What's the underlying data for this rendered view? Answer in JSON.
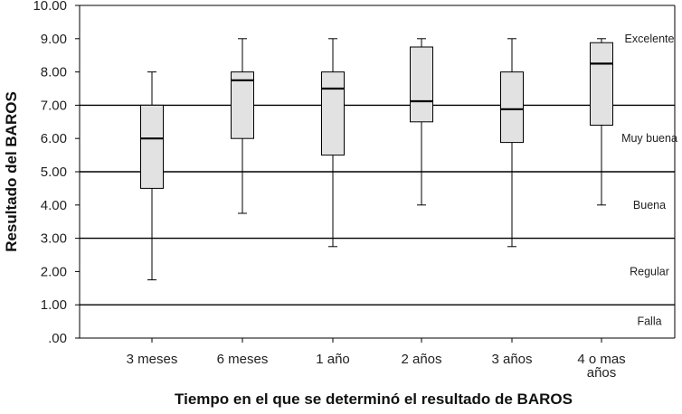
{
  "chart_data": {
    "type": "box",
    "xlabel": "Tiempo en el que se determinó  el resultado de BAROS",
    "ylabel": "Resultado del BAROS",
    "ylim": [
      0,
      10
    ],
    "yticks": [
      ".00",
      "1.00",
      "2.00",
      "3.00",
      "4.00",
      "5.00",
      "6.00",
      "7.00",
      "8.00",
      "9.00",
      "10.00"
    ],
    "categories": [
      {
        "label": "3 meses",
        "lines": [
          "3 meses"
        ]
      },
      {
        "label": "6 meses",
        "lines": [
          "6 meses"
        ]
      },
      {
        "label": "1 año",
        "lines": [
          "1 año"
        ]
      },
      {
        "label": "2 años",
        "lines": [
          "2 años"
        ]
      },
      {
        "label": "3 años",
        "lines": [
          "3 años"
        ]
      },
      {
        "label": "4 o mas años",
        "lines": [
          "4 o mas",
          "años"
        ]
      }
    ],
    "boxes": [
      {
        "min": 1.75,
        "q1": 4.5,
        "median": 6.0,
        "q3": 7.0,
        "max": 8.0
      },
      {
        "min": 3.75,
        "q1": 6.0,
        "median": 7.75,
        "q3": 8.0,
        "max": 9.0
      },
      {
        "min": 2.75,
        "q1": 5.5,
        "median": 7.5,
        "q3": 8.0,
        "max": 9.0
      },
      {
        "min": 4.0,
        "q1": 6.5,
        "median": 7.12,
        "q3": 8.75,
        "max": 9.0
      },
      {
        "min": 2.75,
        "q1": 5.88,
        "median": 6.88,
        "q3": 8.0,
        "max": 9.0
      },
      {
        "min": 4.0,
        "q1": 6.4,
        "median": 8.25,
        "q3": 8.88,
        "max": 9.0
      }
    ],
    "reference_lines": [
      1,
      3,
      5,
      7
    ],
    "bands": [
      {
        "label": "Excelente",
        "y": 9.0
      },
      {
        "label": "Muy buena",
        "y": 6.0
      },
      {
        "label": "Buena",
        "y": 4.0
      },
      {
        "label": "Regular",
        "y": 2.0
      },
      {
        "label": "Falla",
        "y": 0.5
      }
    ],
    "colors": {
      "box_fill": "#e2e2e2",
      "line": "#000000"
    },
    "grid": false
  }
}
